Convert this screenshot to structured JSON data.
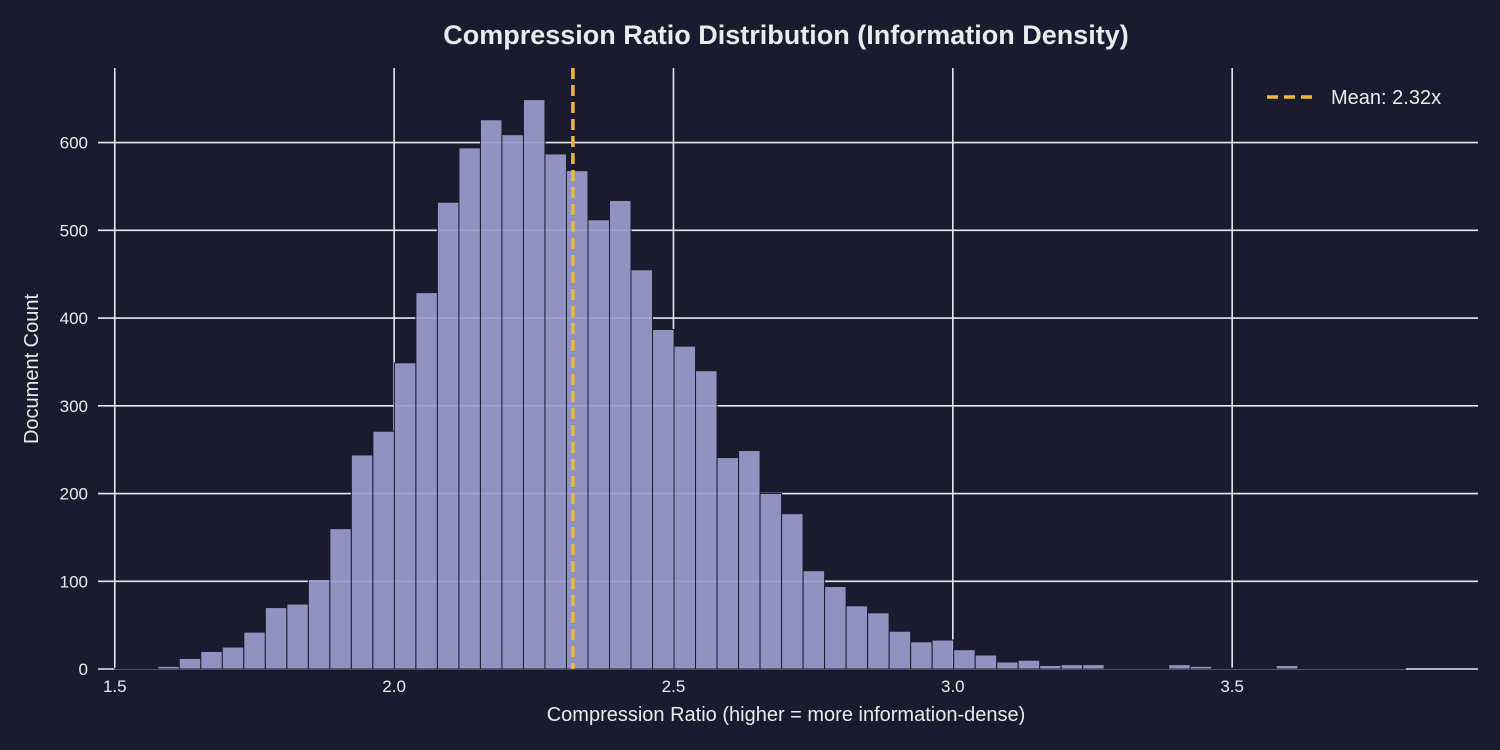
{
  "colors": {
    "background": "#1b1b2f",
    "bar": "#9a9ccc",
    "mean_line": "#f0b83a",
    "grid": "#e8e8ee",
    "text": "#ebebeb"
  },
  "chart_data": {
    "type": "bar",
    "title": "Compression Ratio Distribution (Information Density)",
    "xlabel": "Compression Ratio (higher = more information-dense)",
    "ylabel": "Document Count",
    "xlim": [
      1.47,
      3.94
    ],
    "ylim": [
      0,
      685
    ],
    "xticks": [
      1.5,
      2.0,
      2.5,
      3.0,
      3.5
    ],
    "xtick_labels": [
      "1.5",
      "2.0",
      "2.5",
      "3.0",
      "3.5"
    ],
    "yticks": [
      0,
      100,
      200,
      300,
      400,
      500,
      600
    ],
    "ytick_labels": [
      "0",
      "100",
      "200",
      "300",
      "400",
      "500",
      "600"
    ],
    "grid": true,
    "legend_position": "top-right",
    "bin_width": 0.0385,
    "bin_start": 1.5,
    "counts": [
      1,
      1,
      3,
      12,
      20,
      25,
      42,
      70,
      74,
      102,
      160,
      244,
      271,
      349,
      429,
      532,
      594,
      626,
      609,
      649,
      587,
      568,
      512,
      534,
      455,
      387,
      368,
      340,
      241,
      249,
      200,
      177,
      112,
      94,
      72,
      64,
      43,
      31,
      33,
      22,
      16,
      8,
      10,
      4,
      5,
      5,
      1,
      1,
      1,
      5,
      3,
      1,
      1,
      1,
      4,
      1,
      1,
      1,
      1,
      1
    ],
    "mean": 2.32,
    "mean_label": "Mean: 2.32x"
  }
}
